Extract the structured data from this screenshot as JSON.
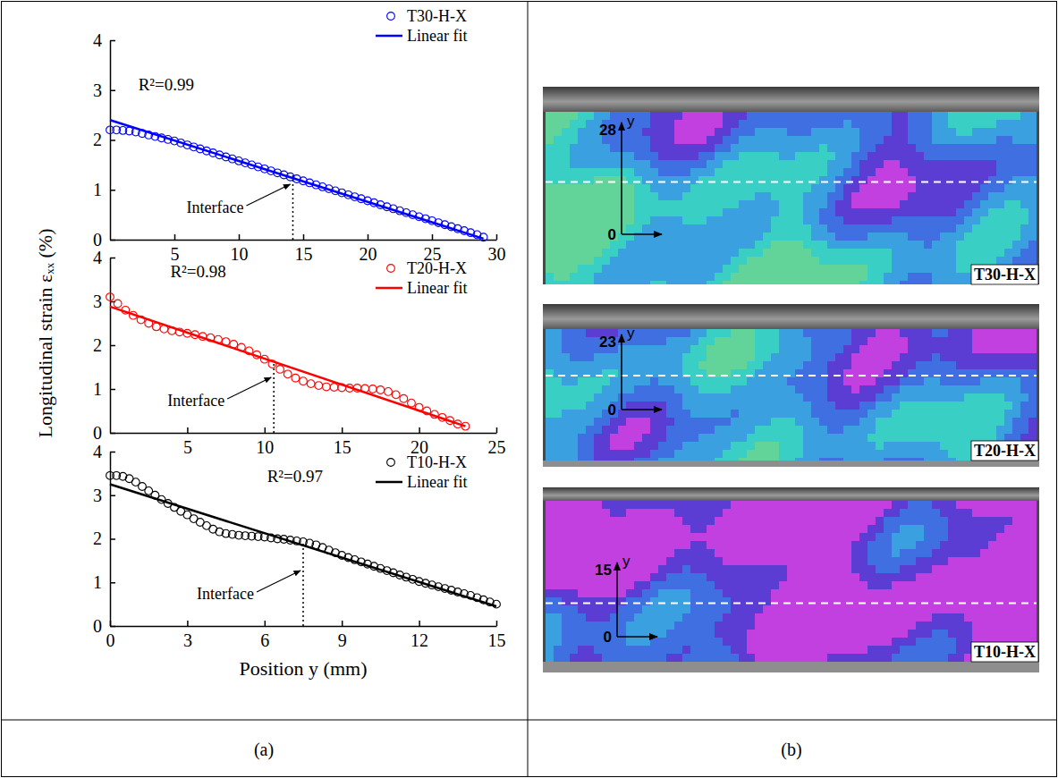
{
  "chart_data": [
    {
      "type": "scatter",
      "legend": "upper right",
      "xlim": [
        0,
        30
      ],
      "ylim": [
        0,
        4
      ],
      "xticks": [
        5,
        10,
        15,
        20,
        25,
        30
      ],
      "yticks": [
        0,
        1,
        2,
        3,
        4
      ],
      "series": [
        {
          "name": "T30-H-X",
          "type": "scatter",
          "marker": "circle",
          "color": "#0000ff",
          "x": [
            0,
            0.5,
            1,
            1.5,
            2,
            2.5,
            3,
            3.5,
            4,
            4.5,
            5,
            5.5,
            6,
            6.5,
            7,
            7.5,
            8,
            8.5,
            9,
            9.5,
            10,
            10.5,
            11,
            11.5,
            12,
            12.5,
            13,
            13.5,
            14,
            14.5,
            15,
            15.5,
            16,
            16.5,
            17,
            17.5,
            18,
            18.5,
            19,
            19.5,
            20,
            20.5,
            21,
            21.5,
            22,
            22.5,
            23,
            23.5,
            24,
            24.5,
            25,
            25.5,
            26,
            26.5,
            27,
            27.5,
            28,
            28.5,
            29
          ],
          "values": [
            2.2,
            2.2,
            2.19,
            2.18,
            2.16,
            2.13,
            2.1,
            2.07,
            2.04,
            2.01,
            1.98,
            1.94,
            1.9,
            1.86,
            1.82,
            1.78,
            1.74,
            1.7,
            1.66,
            1.62,
            1.58,
            1.54,
            1.5,
            1.46,
            1.42,
            1.38,
            1.34,
            1.3,
            1.26,
            1.22,
            1.18,
            1.14,
            1.1,
            1.06,
            1.02,
            0.98,
            0.94,
            0.9,
            0.86,
            0.82,
            0.78,
            0.74,
            0.7,
            0.66,
            0.62,
            0.58,
            0.54,
            0.5,
            0.46,
            0.42,
            0.38,
            0.34,
            0.3,
            0.26,
            0.22,
            0.18,
            0.14,
            0.1,
            0.05
          ]
        },
        {
          "name": "Linear fit",
          "type": "line",
          "line_style": "solid",
          "color": "#0000ff",
          "x": [
            0,
            29
          ],
          "values": [
            2.4,
            0.02
          ]
        }
      ],
      "r2_label": {
        "text": "R²=0.99",
        "x": 2.2,
        "y": 3.0
      },
      "interface": {
        "text": "Interface",
        "x": 14.2,
        "y": 1.3
      }
    },
    {
      "type": "scatter",
      "legend": "upper right",
      "xlim": [
        0,
        25
      ],
      "ylim": [
        0,
        4
      ],
      "xticks": [
        5,
        10,
        15,
        20,
        25
      ],
      "yticks": [
        0,
        1,
        2,
        3,
        4
      ],
      "ylabel": "Longitudinal strain εₓₓ (%)",
      "series": [
        {
          "name": "T20-H-X",
          "type": "scatter",
          "marker": "circle",
          "color": "#ff0000",
          "x": [
            0,
            0.5,
            1,
            1.5,
            2,
            2.5,
            3,
            3.5,
            4,
            4.5,
            5,
            5.5,
            6,
            6.5,
            7,
            7.5,
            8,
            8.5,
            9,
            9.5,
            10,
            10.5,
            11,
            11.5,
            12,
            12.5,
            13,
            13.5,
            14,
            14.5,
            15,
            15.5,
            16,
            16.5,
            17,
            17.5,
            18,
            18.5,
            19,
            19.5,
            20,
            20.5,
            21,
            21.5,
            22,
            22.5,
            23
          ],
          "values": [
            3.1,
            2.95,
            2.8,
            2.68,
            2.58,
            2.5,
            2.42,
            2.37,
            2.33,
            2.3,
            2.27,
            2.24,
            2.2,
            2.17,
            2.13,
            2.08,
            2.02,
            1.95,
            1.87,
            1.78,
            1.68,
            1.57,
            1.45,
            1.34,
            1.25,
            1.18,
            1.12,
            1.08,
            1.05,
            1.04,
            1.03,
            1.02,
            1.02,
            1.01,
            1.0,
            0.98,
            0.94,
            0.87,
            0.78,
            0.68,
            0.58,
            0.5,
            0.42,
            0.35,
            0.28,
            0.2,
            0.15
          ]
        },
        {
          "name": "Linear fit",
          "type": "line",
          "line_style": "solid",
          "color": "#ff0000",
          "x": [
            0,
            23
          ],
          "values": [
            2.88,
            0.15
          ]
        }
      ],
      "r2_label": {
        "text": "R²=0.98",
        "x": 3.9,
        "y": 3.55
      },
      "interface": {
        "text": "Interface",
        "x": 10.6,
        "y": 1.6
      }
    },
    {
      "type": "scatter",
      "legend": "upper right",
      "xlim": [
        0,
        15
      ],
      "ylim": [
        0,
        4
      ],
      "xticks": [
        0,
        3,
        6,
        9,
        12,
        15
      ],
      "yticks": [
        0,
        1,
        2,
        3,
        4
      ],
      "xlabel": "Position y (mm)",
      "series": [
        {
          "name": "T10-H-X",
          "type": "scatter",
          "marker": "circle",
          "color": "#000000",
          "x": [
            0,
            0.25,
            0.5,
            0.75,
            1,
            1.25,
            1.5,
            1.75,
            2,
            2.25,
            2.5,
            2.75,
            3,
            3.25,
            3.5,
            3.75,
            4,
            4.25,
            4.5,
            4.75,
            5,
            5.25,
            5.5,
            5.75,
            6,
            6.25,
            6.5,
            6.75,
            7,
            7.25,
            7.5,
            7.75,
            8,
            8.25,
            8.5,
            8.75,
            9,
            9.25,
            9.5,
            9.75,
            10,
            10.25,
            10.5,
            10.75,
            11,
            11.25,
            11.5,
            11.75,
            12,
            12.25,
            12.5,
            12.75,
            13,
            13.25,
            13.5,
            13.75,
            14,
            14.25,
            14.5,
            14.75,
            15
          ],
          "values": [
            3.45,
            3.45,
            3.43,
            3.38,
            3.3,
            3.2,
            3.1,
            3.0,
            2.9,
            2.81,
            2.72,
            2.63,
            2.55,
            2.46,
            2.38,
            2.3,
            2.22,
            2.16,
            2.12,
            2.1,
            2.08,
            2.07,
            2.06,
            2.05,
            2.04,
            2.02,
            2.0,
            1.99,
            1.97,
            1.95,
            1.93,
            1.9,
            1.86,
            1.8,
            1.74,
            1.68,
            1.62,
            1.57,
            1.52,
            1.47,
            1.42,
            1.37,
            1.32,
            1.27,
            1.22,
            1.17,
            1.12,
            1.07,
            1.02,
            0.98,
            0.94,
            0.9,
            0.86,
            0.82,
            0.78,
            0.74,
            0.7,
            0.65,
            0.6,
            0.55,
            0.5
          ]
        },
        {
          "name": "Linear fit",
          "type": "line",
          "line_style": "solid",
          "color": "#000000",
          "x": [
            0,
            15
          ],
          "values": [
            3.25,
            0.45
          ]
        }
      ],
      "r2_label": {
        "text": "R²=0.97",
        "x": 6.1,
        "y": 3.3
      },
      "interface": {
        "text": "Interface",
        "x": 7.5,
        "y": 1.93
      }
    }
  ],
  "panel_labels": [
    "(a)",
    "(b)"
  ],
  "strain_maps": [
    {
      "label": "T30-H-X",
      "axis_label": "y",
      "yticks": [
        0,
        28
      ]
    },
    {
      "label": "T20-H-X",
      "axis_label": "y",
      "yticks": [
        0,
        23
      ]
    },
    {
      "label": "T10-H-X",
      "axis_label": "y",
      "yticks": [
        0,
        15
      ]
    }
  ]
}
